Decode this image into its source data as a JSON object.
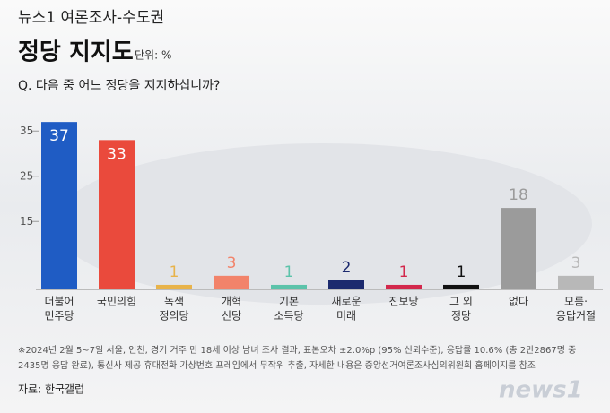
{
  "chart_data": {
    "type": "bar",
    "kicker": "뉴스1 여론조사-수도권",
    "title": "정당 지지도",
    "unit": "단위: %",
    "question": "Q. 다음 중 어느 정당을 지지하십니까?",
    "categories": [
      [
        "더불어",
        "민주당"
      ],
      [
        "국민의힘"
      ],
      [
        "녹색",
        "정의당"
      ],
      [
        "개혁",
        "신당"
      ],
      [
        "기본",
        "소득당"
      ],
      [
        "새로운",
        "미래"
      ],
      [
        "진보당"
      ],
      [
        "그 외",
        "정당"
      ],
      [
        "없다"
      ],
      [
        "모름·",
        "응답거절"
      ]
    ],
    "values": [
      37,
      33,
      1,
      3,
      1,
      2,
      1,
      1,
      18,
      3
    ],
    "colors": [
      "#1f5cc4",
      "#ea4a3c",
      "#e8b34a",
      "#f2836a",
      "#5cc3aa",
      "#1c2a6e",
      "#d3284c",
      "#111111",
      "#9b9b9b",
      "#b8b8b8"
    ],
    "ylim": [
      0,
      40
    ],
    "yticks": [
      15,
      25,
      35
    ],
    "notes": [
      "※2024년 2월 5~7일 서울, 인천, 경기 거주 만 18세 이상 남녀 조사 결과, 표본오차 ±2.0%p (95% 신뢰수준), 응답률 10.6% (총 2만2867명 중",
      "2435명 응답 완료), 통신사 제공 휴대전화 가상번호 프레임에서 무작위 추출, 자세한 내용은 중앙선거여론조사심의위원회 홈페이지를 참조"
    ],
    "source": "자료: 한국갤럽",
    "logo": "news1"
  }
}
